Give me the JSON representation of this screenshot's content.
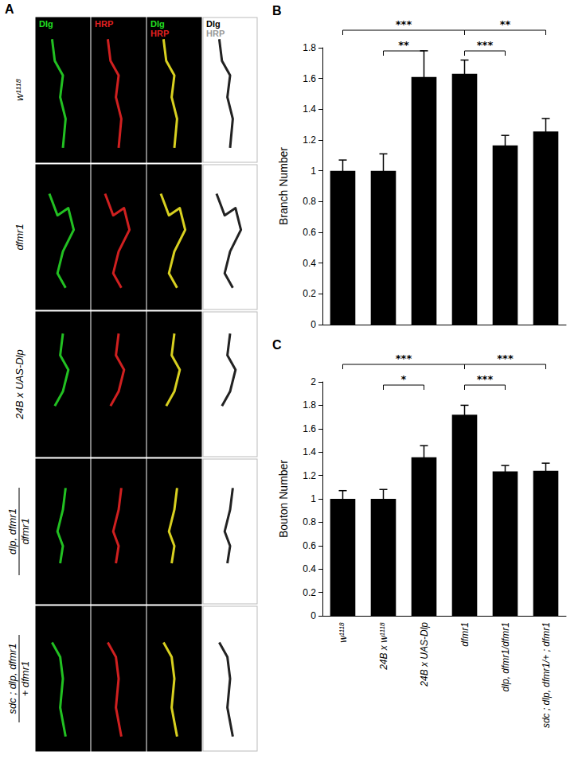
{
  "panel_a": {
    "label": "A",
    "columns": [
      [
        "Dlg"
      ],
      [
        "HRP"
      ],
      [
        "Dlg",
        "HRP"
      ],
      [
        "Dlg",
        "HRP"
      ]
    ],
    "rows": [
      [
        "w¹¹¹⁸"
      ],
      [
        "dfmr1"
      ],
      [
        "24B x UAS-Dlp"
      ],
      [
        "dlp, dfmr1",
        "dfmr1"
      ],
      [
        "sdc ; dlp, dfmr1",
        "+      dfmr1"
      ]
    ]
  },
  "chart_data": [
    {
      "type": "bar",
      "title": "B",
      "y_label": "Branch Number",
      "categories": [
        "w¹¹¹⁸",
        "24B x w¹¹¹⁸",
        "24B x UAS-Dlp",
        "dfmr1",
        "dlp, dfmr1/dfmr1",
        "sdc ; dlp, dfmr1/+ ; dfmr1"
      ],
      "values": [
        1.0,
        1.0,
        1.61,
        1.63,
        1.165,
        1.255
      ],
      "errors": [
        0.07,
        0.11,
        0.17,
        0.09,
        0.065,
        0.085
      ],
      "color": "#000000",
      "ylim": [
        0,
        1.8
      ],
      "yticks": [
        0,
        0.2,
        0.4,
        0.6,
        0.8,
        1,
        1.2,
        1.4,
        1.6,
        1.8
      ],
      "grid": false,
      "tick_labels": "y",
      "annotations": [
        {
          "from": "w¹¹¹⁸",
          "to": "dfmr1",
          "label": "***"
        },
        {
          "from": "24B x w¹¹¹⁸",
          "to": "24B x UAS-Dlp",
          "label": "**"
        },
        {
          "from": "dfmr1",
          "to": "dlp, dfmr1/dfmr1",
          "label": "***"
        },
        {
          "from": "dfmr1",
          "to": "sdc ; dlp, dfmr1/+ ; dfmr1",
          "label": "**"
        }
      ]
    },
    {
      "type": "bar",
      "title": "C",
      "y_label": "Bouton Number",
      "categories": [
        "w¹¹¹⁸",
        "24B x w¹¹¹⁸",
        "24B x UAS-Dlp",
        "dfmr1",
        "dlp, dfmr1/dfmr1",
        "sdc ; dlp, dfmr1/+ ; dfmr1"
      ],
      "values": [
        1.0,
        1.0,
        1.355,
        1.72,
        1.235,
        1.24
      ],
      "errors": [
        0.07,
        0.08,
        0.1,
        0.08,
        0.05,
        0.065
      ],
      "color": "#000000",
      "ylim": [
        0,
        2
      ],
      "yticks": [
        0,
        0.2,
        0.4,
        0.6,
        0.8,
        1,
        1.2,
        1.4,
        1.6,
        1.8,
        2
      ],
      "grid": false,
      "annotations": [
        {
          "from": "w¹¹¹⁸",
          "to": "dfmr1",
          "label": "***"
        },
        {
          "from": "24B x w¹¹¹⁸",
          "to": "24B x UAS-Dlp",
          "label": "*"
        },
        {
          "from": "dfmr1",
          "to": "dlp, dfmr1/dfmr1",
          "label": "***"
        },
        {
          "from": "dfmr1",
          "to": "sdc ; dlp, dfmr1/+ ; dfmr1",
          "label": "***"
        }
      ]
    }
  ]
}
